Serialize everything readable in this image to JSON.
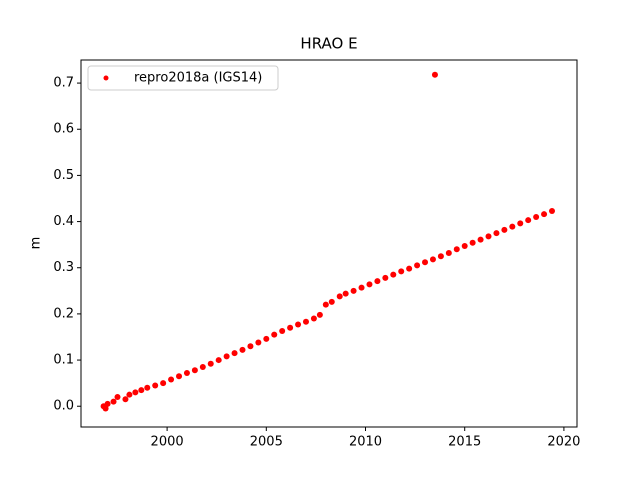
{
  "chart_data": {
    "type": "scatter",
    "title": "HRAO E",
    "y_label": "m",
    "x": [
      1996.8,
      1996.9,
      1997.0,
      1997.3,
      1997.5,
      1997.9,
      1998.1,
      1998.4,
      1998.7,
      1999.0,
      1999.4,
      1999.8,
      2000.2,
      2000.6,
      2001.0,
      2001.4,
      2001.8,
      2002.2,
      2002.6,
      2003.0,
      2003.4,
      2003.8,
      2004.2,
      2004.6,
      2005.0,
      2005.4,
      2005.8,
      2006.2,
      2006.6,
      2007.0,
      2007.4,
      2007.7,
      2008.0,
      2008.3,
      2008.7,
      2009.0,
      2009.4,
      2009.8,
      2010.2,
      2010.6,
      2011.0,
      2011.4,
      2011.8,
      2012.2,
      2012.6,
      2013.0,
      2013.4,
      2013.5,
      2013.8,
      2014.2,
      2014.6,
      2015.0,
      2015.4,
      2015.8,
      2016.2,
      2016.6,
      2017.0,
      2017.4,
      2017.8,
      2018.2,
      2018.6,
      2019.0,
      2019.4
    ],
    "series": [
      {
        "name": "repro2018a (IGS14)",
        "color": "#ff0000",
        "values": [
          0.0,
          -0.005,
          0.005,
          0.01,
          0.02,
          0.015,
          0.025,
          0.03,
          0.035,
          0.04,
          0.045,
          0.05,
          0.058,
          0.065,
          0.072,
          0.078,
          0.085,
          0.092,
          0.1,
          0.108,
          0.115,
          0.122,
          0.13,
          0.138,
          0.146,
          0.155,
          0.163,
          0.17,
          0.177,
          0.183,
          0.19,
          0.198,
          0.22,
          0.226,
          0.238,
          0.244,
          0.25,
          0.257,
          0.264,
          0.271,
          0.278,
          0.285,
          0.292,
          0.298,
          0.305,
          0.312,
          0.318,
          0.718,
          0.325,
          0.332,
          0.34,
          0.347,
          0.354,
          0.361,
          0.368,
          0.375,
          0.382,
          0.389,
          0.396,
          0.403,
          0.41,
          0.416,
          0.423
        ]
      }
    ],
    "xlim": [
      1995.66,
      2020.66
    ],
    "xticks": [
      2000,
      2005,
      2010,
      2015,
      2020
    ],
    "ylim": [
      -0.045,
      0.75
    ],
    "yticks": [
      {
        "value": 0,
        "label": "0.0"
      },
      0.1,
      0.2,
      0.3,
      0.4,
      0.5,
      0.6,
      0.7
    ],
    "legend": "upper left",
    "grid": false
  }
}
